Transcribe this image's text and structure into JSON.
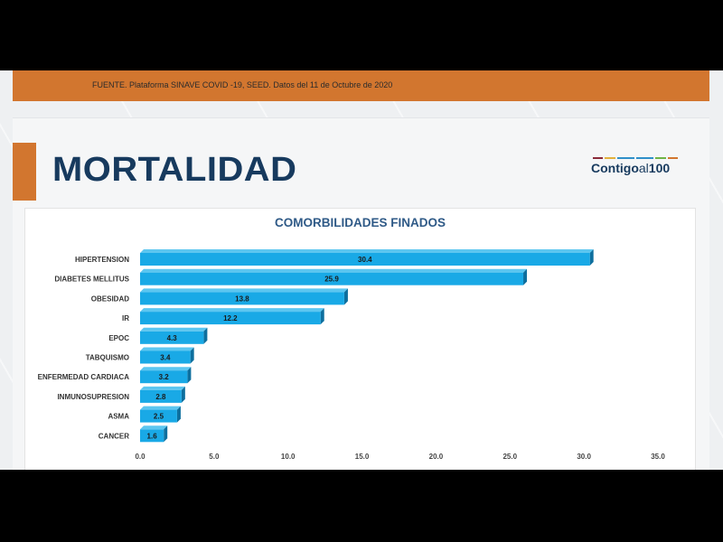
{
  "header": {
    "source_text": "FUENTE. Plataforma SINAVE COVID -19, SEED. Datos del 11 de Octubre de 2020",
    "title": "MORTALIDAD",
    "logo_text_1": "Contigo",
    "logo_text_2": "al",
    "logo_text_3": "100",
    "logo_colors": [
      "#8a2a3a",
      "#e2b13c",
      "#2f8fc9",
      "#2f8fc9",
      "#6fb446",
      "#d2762f"
    ]
  },
  "colors": {
    "orange": "#d2762f",
    "navy": "#173a5e",
    "bar": "#19a9e6",
    "bar_side": "#0e6f9e",
    "bar_top": "#5cc6f0"
  },
  "chart_data": {
    "type": "bar",
    "orientation": "horizontal",
    "title": "COMORBILIDADES FINADOS",
    "categories": [
      "HIPERTENSION",
      "DIABETES MELLITUS",
      "OBESIDAD",
      "IR",
      "EPOC",
      "TABQUISMO",
      "ENFERMEDAD CARDIACA",
      "INMUNOSUPRESION",
      "ASMA",
      "CANCER"
    ],
    "values": [
      30.4,
      25.9,
      13.8,
      12.2,
      4.3,
      3.4,
      3.2,
      2.8,
      2.5,
      1.6
    ],
    "data_labels": [
      "30.4",
      "25.9",
      "13.8",
      "12.2",
      "4.3",
      "3.4",
      "3.2",
      "2.8",
      "2.5",
      "1.6"
    ],
    "xlim": [
      0,
      35
    ],
    "x_ticks": [
      "0.0",
      "5.0",
      "10.0",
      "15.0",
      "20.0",
      "25.0",
      "30.0",
      "35.0"
    ],
    "grid": false,
    "style": "3d"
  }
}
